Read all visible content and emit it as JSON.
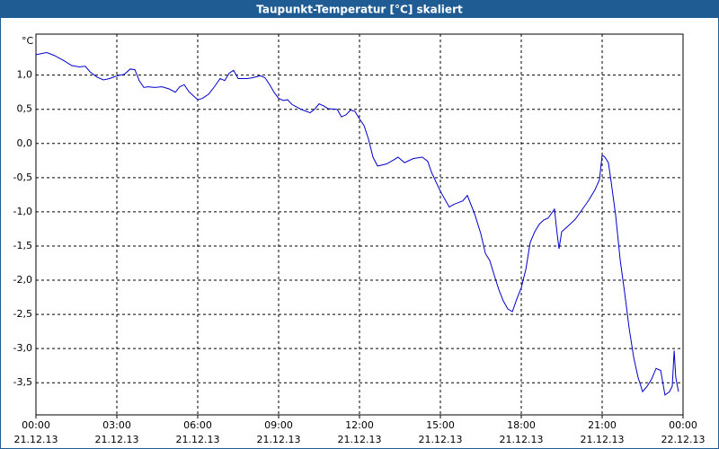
{
  "chart_data": {
    "type": "line",
    "title": "Taupunkt-Temperatur [°C] skaliert",
    "y_label": "°C",
    "x": [
      0,
      0.4,
      0.67,
      1.0,
      1.33,
      1.6,
      1.83,
      2.0,
      2.27,
      2.5,
      2.73,
      3.0,
      3.27,
      3.5,
      3.67,
      3.83,
      4.0,
      4.17,
      4.4,
      4.67,
      4.93,
      5.17,
      5.33,
      5.5,
      5.67,
      5.83,
      6.0,
      6.17,
      6.4,
      6.6,
      6.83,
      7.0,
      7.17,
      7.33,
      7.5,
      7.67,
      7.83,
      8.0,
      8.33,
      8.5,
      8.67,
      8.83,
      9.0,
      9.17,
      9.33,
      9.5,
      9.83,
      10.17,
      10.33,
      10.5,
      10.67,
      10.83,
      11.17,
      11.33,
      11.5,
      11.67,
      11.83,
      12.0,
      12.17,
      12.33,
      12.5,
      12.67,
      13.0,
      13.27,
      13.43,
      13.67,
      14.0,
      14.33,
      14.53,
      14.67,
      15.0,
      15.33,
      15.5,
      15.83,
      16.0,
      16.27,
      16.5,
      16.67,
      16.83,
      17.0,
      17.17,
      17.33,
      17.5,
      17.67,
      17.83,
      18.0,
      18.17,
      18.33,
      18.5,
      18.67,
      18.83,
      19.0,
      19.23,
      19.33,
      19.4,
      19.5,
      19.73,
      20.0,
      20.27,
      20.5,
      20.73,
      20.9,
      21.0,
      21.1,
      21.23,
      21.33,
      21.5,
      21.67,
      21.83,
      22.0,
      22.17,
      22.33,
      22.5,
      22.67,
      22.83,
      23.0,
      23.17,
      23.33,
      23.5,
      23.6,
      23.67,
      23.73,
      23.83
    ],
    "series": [
      {
        "name": "Taupunkt",
        "color": "#0000cc",
        "values": [
          1.3,
          1.33,
          1.29,
          1.22,
          1.14,
          1.12,
          1.13,
          1.05,
          0.97,
          0.93,
          0.95,
          0.99,
          1.01,
          1.09,
          1.08,
          0.92,
          0.82,
          0.83,
          0.82,
          0.83,
          0.8,
          0.75,
          0.83,
          0.86,
          0.76,
          0.7,
          0.64,
          0.66,
          0.72,
          0.82,
          0.95,
          0.92,
          1.03,
          1.07,
          0.95,
          0.95,
          0.95,
          0.96,
          0.99,
          0.96,
          0.86,
          0.75,
          0.66,
          0.63,
          0.64,
          0.57,
          0.5,
          0.45,
          0.5,
          0.58,
          0.55,
          0.51,
          0.5,
          0.39,
          0.42,
          0.49,
          0.47,
          0.36,
          0.26,
          0.07,
          -0.2,
          -0.33,
          -0.3,
          -0.24,
          -0.2,
          -0.28,
          -0.22,
          -0.2,
          -0.26,
          -0.42,
          -0.7,
          -0.93,
          -0.89,
          -0.84,
          -0.76,
          -1.03,
          -1.32,
          -1.61,
          -1.71,
          -1.93,
          -2.14,
          -2.3,
          -2.42,
          -2.46,
          -2.28,
          -2.11,
          -1.84,
          -1.45,
          -1.29,
          -1.18,
          -1.12,
          -1.09,
          -0.96,
          -1.32,
          -1.54,
          -1.29,
          -1.21,
          -1.11,
          -0.96,
          -0.83,
          -0.68,
          -0.53,
          -0.17,
          -0.2,
          -0.28,
          -0.55,
          -1.05,
          -1.71,
          -2.17,
          -2.7,
          -3.13,
          -3.42,
          -3.63,
          -3.55,
          -3.45,
          -3.29,
          -3.32,
          -3.68,
          -3.63,
          -3.55,
          -3.03,
          -3.42,
          -3.63
        ]
      }
    ],
    "xlim": [
      0,
      24
    ],
    "xticks": [
      {
        "value": 0,
        "label": "00:00"
      },
      {
        "value": 3,
        "label": "03:00"
      },
      {
        "value": 6,
        "label": "06:00"
      },
      {
        "value": 9,
        "label": "09:00"
      },
      {
        "value": 12,
        "label": "12:00"
      },
      {
        "value": 15,
        "label": "15:00"
      },
      {
        "value": 18,
        "label": "18:00"
      },
      {
        "value": 21,
        "label": "21:00"
      },
      {
        "value": 24,
        "label": "00:00"
      }
    ],
    "xtick_dates": [
      "21.12.13",
      "21.12.13",
      "21.12.13",
      "21.12.13",
      "21.12.13",
      "21.12.13",
      "21.12.13",
      "21.12.13",
      "22.12.13"
    ],
    "ylim": [
      -3.97,
      1.6
    ],
    "yticks": [
      {
        "value": 1,
        "label": "1,0"
      },
      {
        "value": 0.5,
        "label": "0,5"
      },
      {
        "value": 0,
        "label": "0,0"
      },
      {
        "value": -0.5,
        "label": "-0,5"
      },
      {
        "value": -1,
        "label": "-1,0"
      },
      {
        "value": -1.5,
        "label": "-1,5"
      },
      {
        "value": -2,
        "label": "-2,0"
      },
      {
        "value": -2.5,
        "label": "-2,5"
      },
      {
        "value": -3,
        "label": "-3,0"
      },
      {
        "value": -3.5,
        "label": "-3,5"
      }
    ],
    "grid": true
  }
}
